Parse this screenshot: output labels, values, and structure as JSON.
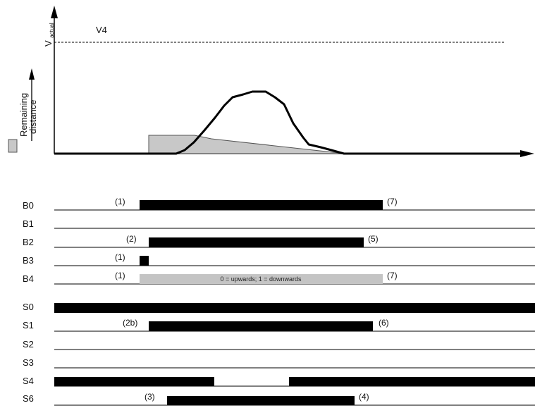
{
  "chart": {
    "v4_label": "V4",
    "y_axis_label": "V",
    "y_axis_label_sub": "actual",
    "legend_line1": "Remaining",
    "legend_line2": "distance"
  },
  "signals": {
    "b0": {
      "name": "B0",
      "start": "(1)",
      "end": "(7)"
    },
    "b1": {
      "name": "B1"
    },
    "b2": {
      "name": "B2",
      "start": "(2)",
      "end": "(5)"
    },
    "b3": {
      "name": "B3",
      "start": "(1)"
    },
    "b4": {
      "name": "B4",
      "start": "(1)",
      "end": "(7)",
      "text": "0 = upwards;  1 = downwards"
    },
    "s0": {
      "name": "S0"
    },
    "s1": {
      "name": "S1",
      "start": "(2b)",
      "end": "(6)"
    },
    "s2": {
      "name": "S2"
    },
    "s3": {
      "name": "S3"
    },
    "s4": {
      "name": "S4"
    },
    "s6": {
      "name": "S6",
      "start": "(3)",
      "end": "(4)"
    }
  }
}
